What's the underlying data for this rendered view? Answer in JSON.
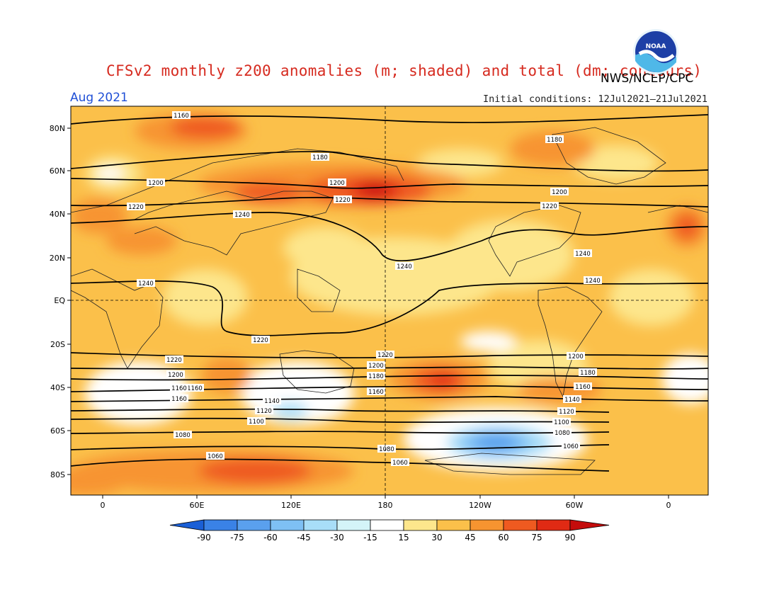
{
  "header": {
    "title": "CFSv2 monthly z200 anomalies (m; shaded) and total (dm; contours)",
    "agency": "NWS/NCEP/CPC",
    "period": "Aug 2021",
    "initial_conditions": "Initial conditions: 12Jul2021–21Jul2021",
    "logo_text": "NOAA"
  },
  "axes": {
    "lat_labels": [
      "80N",
      "60N",
      "40N",
      "20N",
      "EQ",
      "20S",
      "40S",
      "60S",
      "80S"
    ],
    "lon_labels": [
      "0",
      "60E",
      "120E",
      "180",
      "120W",
      "60W",
      "0"
    ]
  },
  "colorbar": {
    "ticks": [
      "-90",
      "-75",
      "-60",
      "-45",
      "-30",
      "-15",
      "15",
      "30",
      "45",
      "60",
      "75",
      "90"
    ],
    "colors": [
      "#1a5fd6",
      "#3a82e6",
      "#5aa0ee",
      "#7ec0f4",
      "#a8def8",
      "#d4f4f8",
      "#ffffff",
      "#fde68c",
      "#fbc04a",
      "#f79430",
      "#ef5a20",
      "#e02a14",
      "#c40c0c"
    ]
  },
  "map": {
    "contour_levels_dm": [
      "1060",
      "1080",
      "1100",
      "1120",
      "1140",
      "1160",
      "1180",
      "1200",
      "1220",
      "1240"
    ],
    "contour_labels": [
      {
        "text": "1160"
      },
      {
        "text": "1180"
      },
      {
        "text": "1180"
      },
      {
        "text": "1160"
      },
      {
        "text": "1200"
      },
      {
        "text": "1200"
      },
      {
        "text": "1200"
      },
      {
        "text": "1220"
      },
      {
        "text": "1220"
      },
      {
        "text": "1220"
      },
      {
        "text": "1240"
      },
      {
        "text": "1240"
      },
      {
        "text": "1240"
      },
      {
        "text": "1240"
      },
      {
        "text": "1240"
      },
      {
        "text": "1220"
      },
      {
        "text": "1220"
      },
      {
        "text": "1220"
      },
      {
        "text": "1200"
      },
      {
        "text": "1200"
      },
      {
        "text": "1200"
      },
      {
        "text": "1180"
      },
      {
        "text": "1180"
      },
      {
        "text": "1160"
      },
      {
        "text": "1160"
      },
      {
        "text": "1160"
      },
      {
        "text": "1160"
      },
      {
        "text": "1140"
      },
      {
        "text": "1140"
      },
      {
        "text": "1120"
      },
      {
        "text": "1120"
      },
      {
        "text": "1100"
      },
      {
        "text": "1100"
      },
      {
        "text": "1080"
      },
      {
        "text": "1080"
      },
      {
        "text": "1060"
      },
      {
        "text": "1060"
      },
      {
        "text": "1060"
      },
      {
        "text": "1080"
      }
    ]
  }
}
